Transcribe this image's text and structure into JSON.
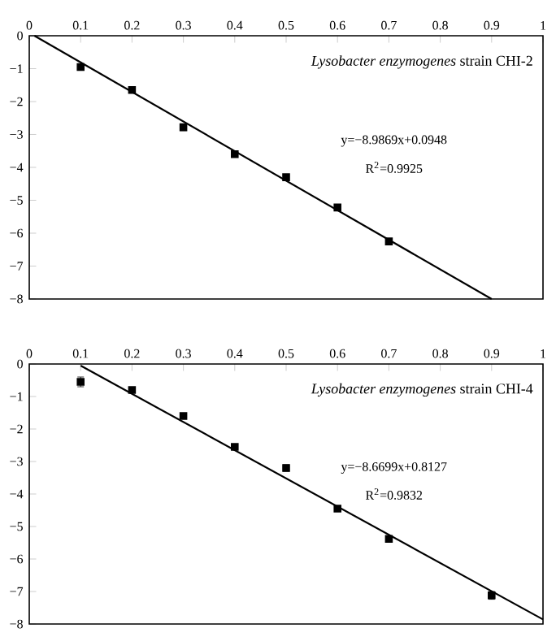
{
  "chart_data": [
    {
      "type": "scatter",
      "xlim": [
        0,
        1
      ],
      "ylim": [
        -8,
        0
      ],
      "xticks": [
        0,
        0.1,
        0.2,
        0.3,
        0.4,
        0.5,
        0.6,
        0.7,
        0.8,
        0.9,
        1
      ],
      "yticks": [
        0,
        {
          "value": -1,
          "label": "−1"
        },
        {
          "value": -2,
          "label": "−2"
        },
        {
          "value": -3,
          "label": "−3"
        },
        {
          "value": -4,
          "label": "−4"
        },
        {
          "value": -5,
          "label": "−5"
        },
        {
          "value": -6,
          "label": "−6"
        },
        {
          "value": -7,
          "label": "−7"
        },
        {
          "value": -8,
          "label": "−8"
        }
      ],
      "series": [
        {
          "marker": "square",
          "color": "#000000",
          "x": [
            0.1,
            0.2,
            0.3,
            0.4,
            0.5,
            0.6,
            0.7
          ],
          "values": [
            -0.95,
            -1.65,
            -2.78,
            -3.6,
            -4.3,
            -5.22,
            -6.25
          ],
          "errors": [
            0.1,
            0.08,
            0.1,
            0.08,
            0.08,
            0.06,
            0.08
          ]
        },
        {
          "type": "line",
          "color": "#000000",
          "x": [
            0.01,
            0.9
          ],
          "values": [
            0,
            -8
          ]
        }
      ],
      "annotations": [
        "*Lysobacter enzymogenes* strain CHI-2",
        "y=−8.9869x+0.0948",
        "R$^{2}$=0.9925"
      ]
    },
    {
      "type": "scatter",
      "xlim": [
        0,
        1
      ],
      "ylim": [
        -8,
        0
      ],
      "xticks": [
        0,
        0.1,
        0.2,
        0.3,
        0.4,
        0.5,
        0.6,
        0.7,
        0.8,
        0.9,
        1
      ],
      "yticks": [
        0,
        {
          "value": -1,
          "label": "−1"
        },
        {
          "value": -2,
          "label": "−2"
        },
        {
          "value": -3,
          "label": "−3"
        },
        {
          "value": -4,
          "label": "−4"
        },
        {
          "value": -5,
          "label": "−5"
        },
        {
          "value": -6,
          "label": "−6"
        },
        {
          "value": -7,
          "label": "−7"
        },
        {
          "value": -8,
          "label": "−8"
        }
      ],
      "series": [
        {
          "marker": "square",
          "color": "#000000",
          "x": [
            0.1,
            0.2,
            0.3,
            0.4,
            0.5,
            0.6,
            0.7,
            0.9
          ],
          "values": [
            -0.55,
            -0.8,
            -1.6,
            -2.55,
            -3.2,
            -4.45,
            -5.38,
            -7.12
          ],
          "errors": [
            0.15,
            0.08,
            0.08,
            0.08,
            0.1,
            0.06,
            0.08,
            0.12
          ]
        },
        {
          "type": "line",
          "color": "#000000",
          "x": [
            0.1,
            1
          ],
          "values": [
            -0.05,
            -7.86
          ]
        }
      ],
      "annotations": [
        "*Lysobacter enzymogenes* strain CHI-4",
        "y=−8.6699x+0.8127",
        "R$^{2}$=0.9832"
      ]
    }
  ]
}
